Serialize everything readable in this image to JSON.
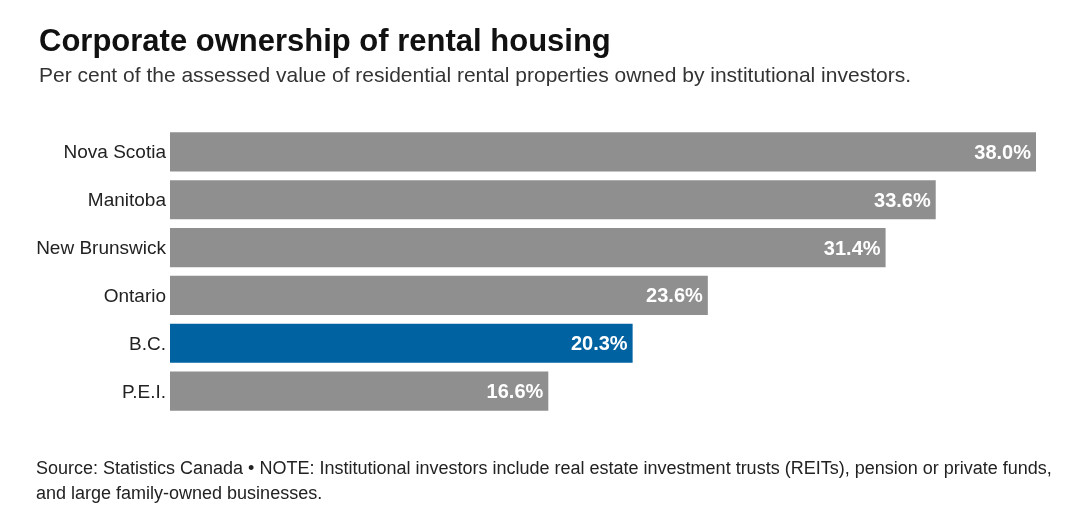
{
  "chart_data": {
    "type": "bar",
    "orientation": "horizontal",
    "title": "Corporate ownership of rental housing",
    "subtitle": "Per cent of the assessed value of residential rental properties owned by institutional investors.",
    "categories": [
      "Nova Scotia",
      "Manitoba",
      "New Brunswick",
      "Ontario",
      "B.C.",
      "P.E.I."
    ],
    "values": [
      38.0,
      33.6,
      31.4,
      23.6,
      20.3,
      16.6
    ],
    "colors": [
      "#8f8f8f",
      "#8f8f8f",
      "#8f8f8f",
      "#8f8f8f",
      "#0062a0",
      "#8f8f8f"
    ],
    "value_labels": [
      "38.0%",
      "33.6%",
      "31.4%",
      "23.6%",
      "20.3%",
      "16.6%"
    ],
    "annotations": [
      "Source: Statistics Canada • NOTE: Institutional investors include real estate investment trusts (REITs), pension or private funds, and large family-owned businesses."
    ]
  }
}
